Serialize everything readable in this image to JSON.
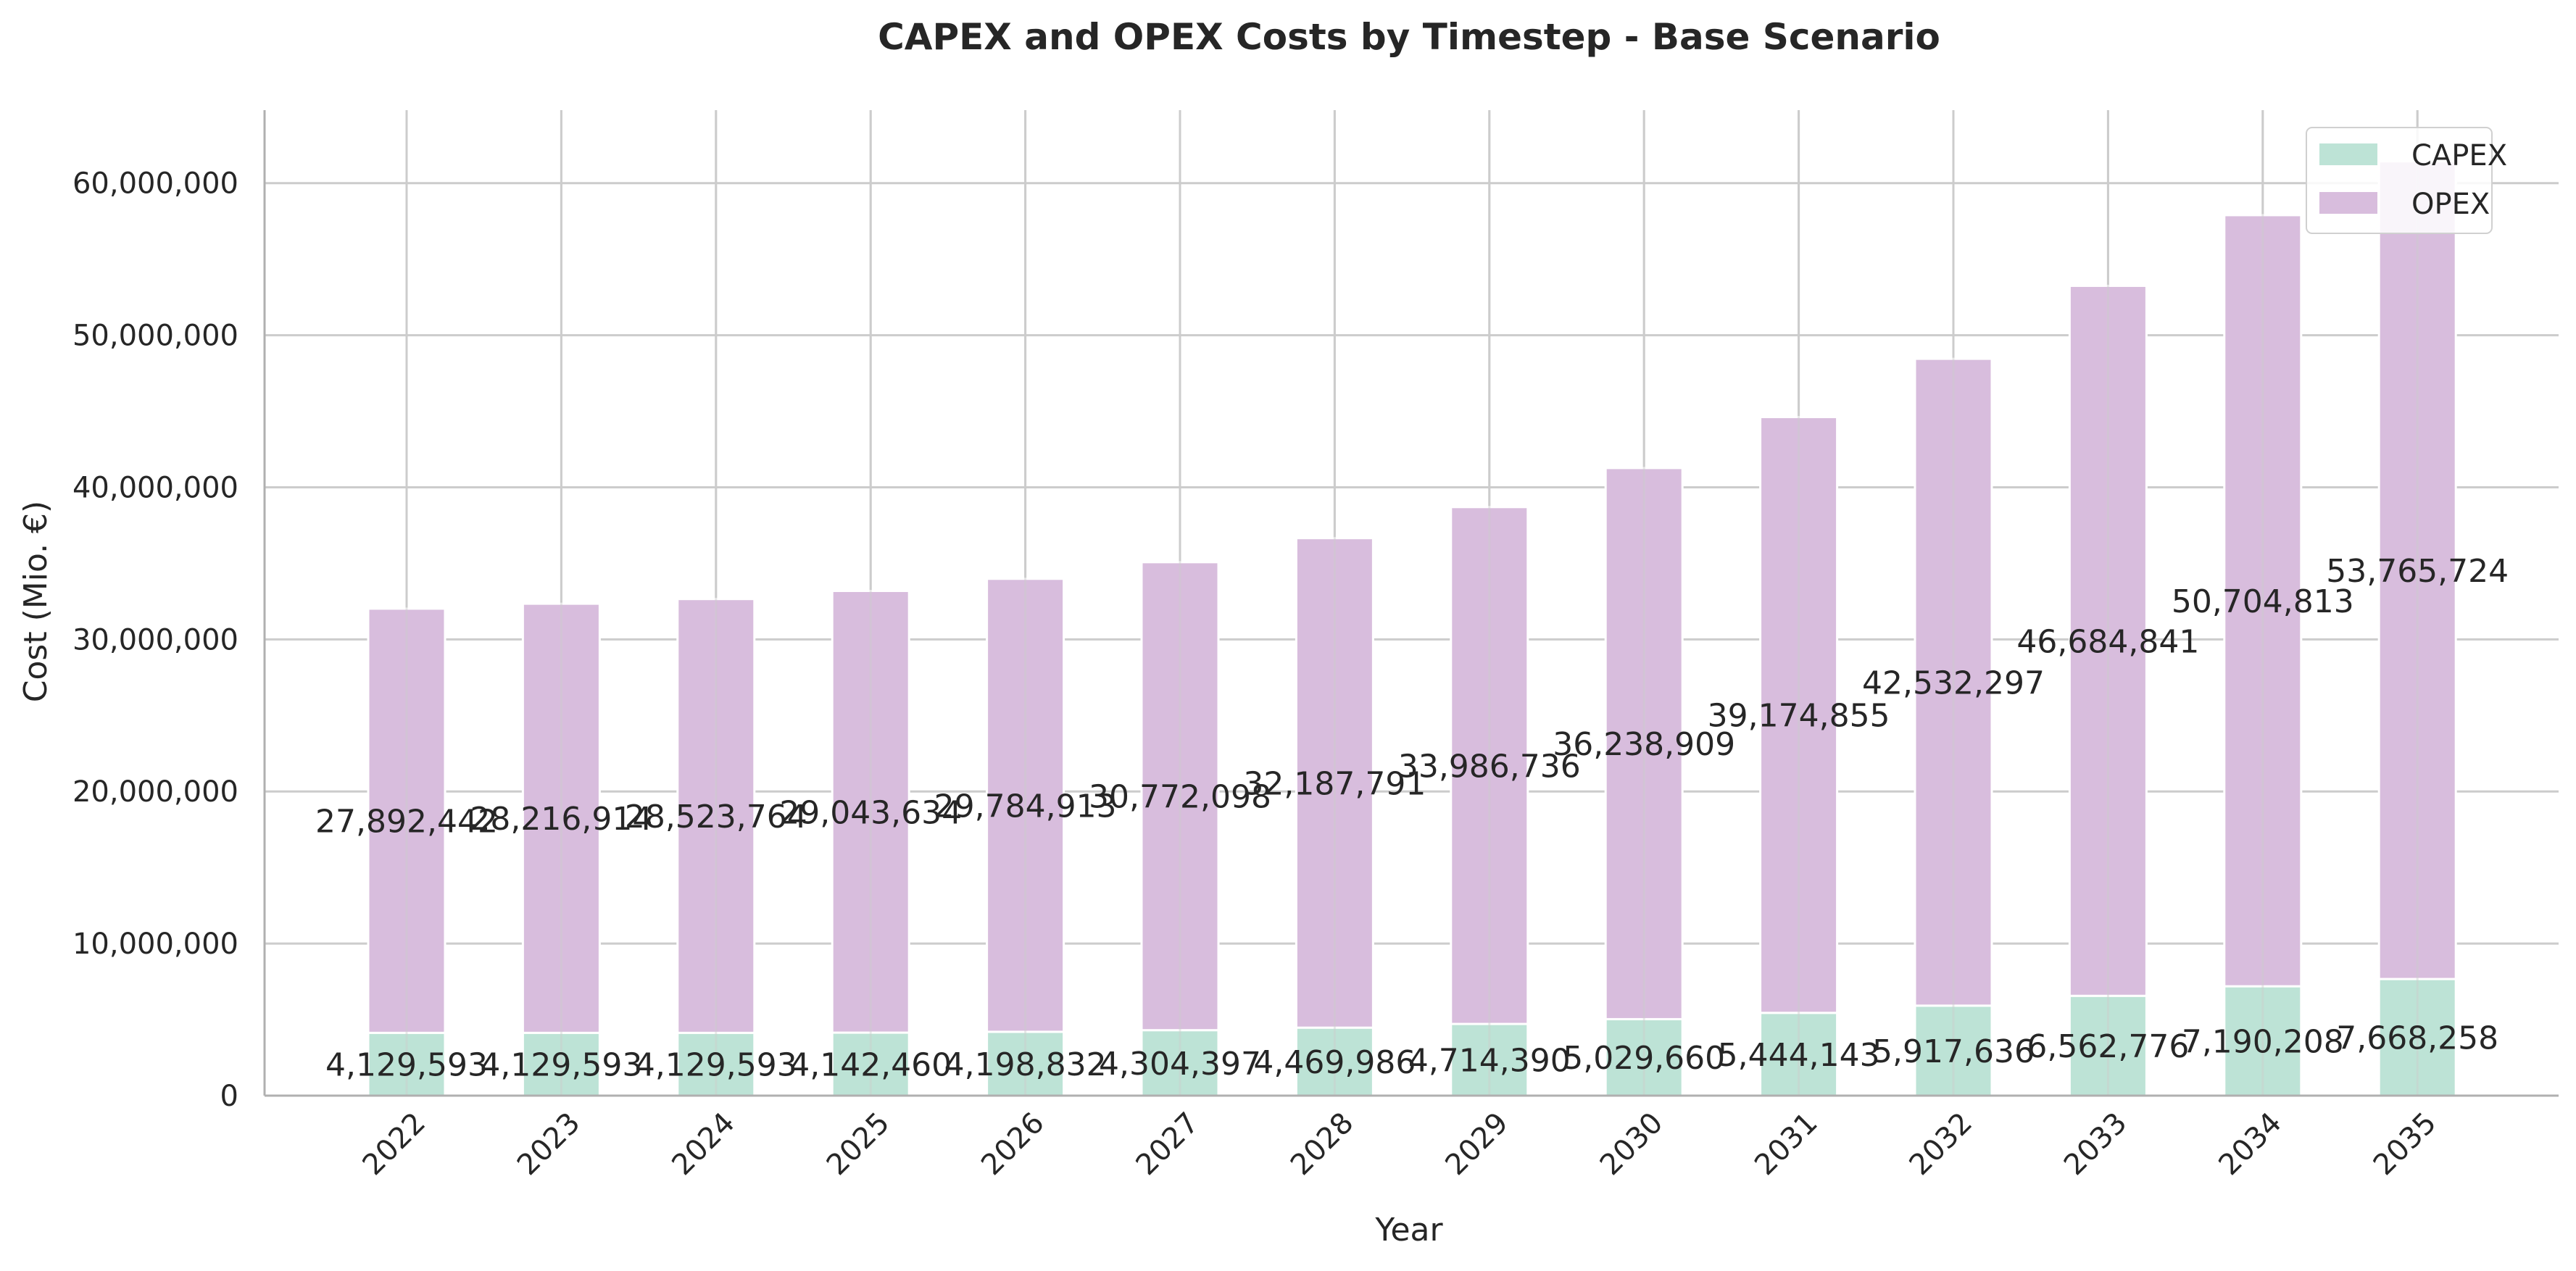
{
  "chart_data": {
    "type": "bar",
    "stacked": true,
    "title": "CAPEX and OPEX Costs by Timestep - Base Scenario",
    "xlabel": "Year",
    "ylabel": "Cost (Mio. €)",
    "categories": [
      "2022",
      "2023",
      "2024",
      "2025",
      "2026",
      "2027",
      "2028",
      "2029",
      "2030",
      "2031",
      "2032",
      "2033",
      "2034",
      "2035"
    ],
    "series": [
      {
        "name": "CAPEX",
        "color": "#bde3d6",
        "values": [
          4129593,
          4129593,
          4129593,
          4142460,
          4198832,
          4304397,
          4469986,
          4714390,
          5029660,
          5444143,
          5917636,
          6562776,
          7190208,
          7668258
        ],
        "labels": [
          "4,129,593",
          "4,129,593",
          "4,129,593",
          "4,142,460",
          "4,198,832",
          "4,304,397",
          "4,469,986",
          "4,714,390",
          "5,029,660",
          "5,444,143",
          "5,917,636",
          "6,562,776",
          "7,190,208",
          "7,668,258"
        ]
      },
      {
        "name": "OPEX",
        "color": "#d8bddd",
        "values": [
          27892442,
          28216914,
          28523764,
          29043634,
          29784913,
          30772098,
          32187791,
          33986736,
          36238909,
          39174855,
          42532297,
          46684841,
          50704813,
          53765724
        ],
        "labels": [
          "27,892,442",
          "28,216,914",
          "28,523,764",
          "29,043,634",
          "29,784,913",
          "30,772,098",
          "32,187,791",
          "33,986,736",
          "36,238,909",
          "39,174,855",
          "42,532,297",
          "46,684,841",
          "50,704,813",
          "53,765,724"
        ]
      }
    ],
    "yticks": [
      0,
      10000000,
      20000000,
      30000000,
      40000000,
      50000000,
      60000000
    ],
    "ytick_labels": [
      "0",
      "10,000,000",
      "20,000,000",
      "30,000,000",
      "40,000,000",
      "50,000,000",
      "60,000,000"
    ],
    "ylim": [
      0,
      64800000
    ],
    "grid": true,
    "legend_position": "top-right",
    "colors": {
      "grid": "#cccccc",
      "axis": "#b0b0b0",
      "text": "#262626"
    }
  }
}
